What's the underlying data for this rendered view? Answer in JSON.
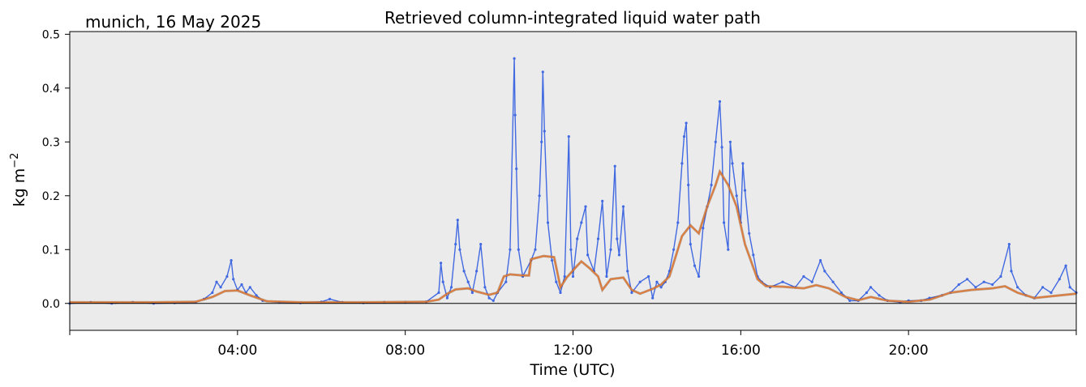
{
  "chart_data": {
    "type": "scatter",
    "title": "Retrieved column-integrated liquid water path",
    "location_date": "munich, 16 May 2025",
    "xlabel": "Time (UTC)",
    "ylabel": "kg m",
    "ylabel_exponent": "−2",
    "xlim": [
      0,
      24
    ],
    "ylim": [
      -0.05,
      0.505
    ],
    "x_ticks": [
      {
        "value": 4,
        "label": "04:00"
      },
      {
        "value": 8,
        "label": "08:00"
      },
      {
        "value": 12,
        "label": "12:00"
      },
      {
        "value": 16,
        "label": "16:00"
      },
      {
        "value": 20,
        "label": "20:00"
      }
    ],
    "y_ticks": [
      {
        "value": 0.0,
        "label": "0.0"
      },
      {
        "value": 0.1,
        "label": "0.1"
      },
      {
        "value": 0.2,
        "label": "0.2"
      },
      {
        "value": 0.3,
        "label": "0.3"
      },
      {
        "value": 0.4,
        "label": "0.4"
      },
      {
        "value": 0.5,
        "label": "0.5"
      }
    ],
    "grid": false,
    "zero_line": true,
    "background_color": "#ebebeb",
    "series": [
      {
        "kind": "scatter",
        "color": "#4169e1",
        "points": [
          [
            0.0,
            0.0
          ],
          [
            0.5,
            0.002
          ],
          [
            1.0,
            0.0
          ],
          [
            1.5,
            0.002
          ],
          [
            2.0,
            0.0
          ],
          [
            2.5,
            0.001
          ],
          [
            3.0,
            0.002
          ],
          [
            3.2,
            0.008
          ],
          [
            3.4,
            0.02
          ],
          [
            3.5,
            0.04
          ],
          [
            3.6,
            0.03
          ],
          [
            3.75,
            0.05
          ],
          [
            3.85,
            0.08
          ],
          [
            3.9,
            0.045
          ],
          [
            4.0,
            0.025
          ],
          [
            4.1,
            0.035
          ],
          [
            4.2,
            0.02
          ],
          [
            4.3,
            0.03
          ],
          [
            4.45,
            0.015
          ],
          [
            4.6,
            0.005
          ],
          [
            5.0,
            0.002
          ],
          [
            5.5,
            0.001
          ],
          [
            6.0,
            0.003
          ],
          [
            6.2,
            0.008
          ],
          [
            6.5,
            0.002
          ],
          [
            7.0,
            0.001
          ],
          [
            7.5,
            0.002
          ],
          [
            8.0,
            0.002
          ],
          [
            8.5,
            0.003
          ],
          [
            8.8,
            0.02
          ],
          [
            8.85,
            0.075
          ],
          [
            8.9,
            0.04
          ],
          [
            9.0,
            0.01
          ],
          [
            9.1,
            0.03
          ],
          [
            9.2,
            0.11
          ],
          [
            9.25,
            0.155
          ],
          [
            9.3,
            0.1
          ],
          [
            9.4,
            0.06
          ],
          [
            9.5,
            0.04
          ],
          [
            9.6,
            0.02
          ],
          [
            9.7,
            0.06
          ],
          [
            9.8,
            0.11
          ],
          [
            9.9,
            0.03
          ],
          [
            10.0,
            0.01
          ],
          [
            10.1,
            0.005
          ],
          [
            10.2,
            0.02
          ],
          [
            10.4,
            0.04
          ],
          [
            10.5,
            0.1
          ],
          [
            10.6,
            0.455
          ],
          [
            10.62,
            0.35
          ],
          [
            10.65,
            0.25
          ],
          [
            10.7,
            0.1
          ],
          [
            10.8,
            0.05
          ],
          [
            11.0,
            0.08
          ],
          [
            11.1,
            0.1
          ],
          [
            11.2,
            0.2
          ],
          [
            11.25,
            0.3
          ],
          [
            11.28,
            0.43
          ],
          [
            11.32,
            0.32
          ],
          [
            11.4,
            0.15
          ],
          [
            11.5,
            0.08
          ],
          [
            11.6,
            0.04
          ],
          [
            11.7,
            0.02
          ],
          [
            11.8,
            0.05
          ],
          [
            11.9,
            0.31
          ],
          [
            11.95,
            0.1
          ],
          [
            12.0,
            0.05
          ],
          [
            12.1,
            0.12
          ],
          [
            12.2,
            0.15
          ],
          [
            12.3,
            0.18
          ],
          [
            12.35,
            0.09
          ],
          [
            12.5,
            0.06
          ],
          [
            12.6,
            0.12
          ],
          [
            12.7,
            0.19
          ],
          [
            12.8,
            0.05
          ],
          [
            12.9,
            0.1
          ],
          [
            13.0,
            0.255
          ],
          [
            13.05,
            0.12
          ],
          [
            13.1,
            0.09
          ],
          [
            13.2,
            0.18
          ],
          [
            13.3,
            0.06
          ],
          [
            13.4,
            0.02
          ],
          [
            13.6,
            0.04
          ],
          [
            13.8,
            0.05
          ],
          [
            13.9,
            0.01
          ],
          [
            14.0,
            0.04
          ],
          [
            14.1,
            0.03
          ],
          [
            14.2,
            0.04
          ],
          [
            14.3,
            0.06
          ],
          [
            14.4,
            0.1
          ],
          [
            14.5,
            0.15
          ],
          [
            14.6,
            0.26
          ],
          [
            14.65,
            0.31
          ],
          [
            14.7,
            0.335
          ],
          [
            14.75,
            0.22
          ],
          [
            14.8,
            0.11
          ],
          [
            14.9,
            0.07
          ],
          [
            15.0,
            0.05
          ],
          [
            15.1,
            0.14
          ],
          [
            15.2,
            0.18
          ],
          [
            15.3,
            0.22
          ],
          [
            15.4,
            0.3
          ],
          [
            15.5,
            0.375
          ],
          [
            15.55,
            0.29
          ],
          [
            15.6,
            0.15
          ],
          [
            15.7,
            0.1
          ],
          [
            15.75,
            0.3
          ],
          [
            15.8,
            0.26
          ],
          [
            15.9,
            0.2
          ],
          [
            16.0,
            0.15
          ],
          [
            16.05,
            0.26
          ],
          [
            16.1,
            0.21
          ],
          [
            16.2,
            0.13
          ],
          [
            16.3,
            0.09
          ],
          [
            16.4,
            0.05
          ],
          [
            16.5,
            0.04
          ],
          [
            16.7,
            0.03
          ],
          [
            17.0,
            0.04
          ],
          [
            17.3,
            0.03
          ],
          [
            17.5,
            0.05
          ],
          [
            17.7,
            0.04
          ],
          [
            17.9,
            0.08
          ],
          [
            18.0,
            0.06
          ],
          [
            18.2,
            0.04
          ],
          [
            18.4,
            0.02
          ],
          [
            18.6,
            0.005
          ],
          [
            18.8,
            0.005
          ],
          [
            19.0,
            0.02
          ],
          [
            19.1,
            0.03
          ],
          [
            19.3,
            0.015
          ],
          [
            19.5,
            0.005
          ],
          [
            19.8,
            0.002
          ],
          [
            20.0,
            0.005
          ],
          [
            20.3,
            0.005
          ],
          [
            20.5,
            0.01
          ],
          [
            20.8,
            0.015
          ],
          [
            21.0,
            0.02
          ],
          [
            21.2,
            0.035
          ],
          [
            21.4,
            0.045
          ],
          [
            21.6,
            0.03
          ],
          [
            21.8,
            0.04
          ],
          [
            22.0,
            0.035
          ],
          [
            22.2,
            0.05
          ],
          [
            22.4,
            0.11
          ],
          [
            22.45,
            0.06
          ],
          [
            22.6,
            0.03
          ],
          [
            22.8,
            0.015
          ],
          [
            23.0,
            0.01
          ],
          [
            23.2,
            0.03
          ],
          [
            23.4,
            0.02
          ],
          [
            23.6,
            0.045
          ],
          [
            23.75,
            0.07
          ],
          [
            23.85,
            0.03
          ],
          [
            24.0,
            0.02
          ]
        ]
      },
      {
        "kind": "line",
        "color": "#e07b39",
        "points": [
          [
            0.0,
            0.002
          ],
          [
            1.0,
            0.002
          ],
          [
            2.0,
            0.002
          ],
          [
            3.0,
            0.003
          ],
          [
            3.4,
            0.012
          ],
          [
            3.7,
            0.023
          ],
          [
            4.0,
            0.024
          ],
          [
            4.3,
            0.015
          ],
          [
            4.7,
            0.004
          ],
          [
            5.5,
            0.002
          ],
          [
            7.0,
            0.002
          ],
          [
            8.5,
            0.003
          ],
          [
            8.8,
            0.007
          ],
          [
            9.0,
            0.018
          ],
          [
            9.2,
            0.026
          ],
          [
            9.5,
            0.028
          ],
          [
            9.7,
            0.022
          ],
          [
            10.0,
            0.016
          ],
          [
            10.2,
            0.02
          ],
          [
            10.35,
            0.05
          ],
          [
            10.5,
            0.054
          ],
          [
            10.8,
            0.052
          ],
          [
            10.95,
            0.052
          ],
          [
            11.0,
            0.082
          ],
          [
            11.3,
            0.088
          ],
          [
            11.55,
            0.086
          ],
          [
            11.7,
            0.03
          ],
          [
            11.85,
            0.048
          ],
          [
            12.1,
            0.07
          ],
          [
            12.2,
            0.078
          ],
          [
            12.4,
            0.065
          ],
          [
            12.6,
            0.05
          ],
          [
            12.7,
            0.025
          ],
          [
            12.9,
            0.045
          ],
          [
            13.2,
            0.048
          ],
          [
            13.4,
            0.025
          ],
          [
            13.6,
            0.018
          ],
          [
            13.9,
            0.027
          ],
          [
            14.1,
            0.035
          ],
          [
            14.3,
            0.05
          ],
          [
            14.6,
            0.125
          ],
          [
            14.8,
            0.145
          ],
          [
            15.0,
            0.13
          ],
          [
            15.2,
            0.18
          ],
          [
            15.4,
            0.22
          ],
          [
            15.5,
            0.245
          ],
          [
            15.7,
            0.22
          ],
          [
            15.9,
            0.18
          ],
          [
            16.1,
            0.11
          ],
          [
            16.4,
            0.045
          ],
          [
            16.6,
            0.032
          ],
          [
            17.0,
            0.031
          ],
          [
            17.5,
            0.028
          ],
          [
            17.8,
            0.034
          ],
          [
            18.1,
            0.028
          ],
          [
            18.5,
            0.012
          ],
          [
            18.8,
            0.006
          ],
          [
            19.1,
            0.012
          ],
          [
            19.5,
            0.005
          ],
          [
            20.0,
            0.003
          ],
          [
            20.5,
            0.007
          ],
          [
            21.0,
            0.02
          ],
          [
            21.5,
            0.025
          ],
          [
            22.0,
            0.028
          ],
          [
            22.3,
            0.032
          ],
          [
            22.6,
            0.02
          ],
          [
            23.0,
            0.01
          ],
          [
            23.5,
            0.014
          ],
          [
            24.0,
            0.018
          ]
        ]
      }
    ]
  }
}
